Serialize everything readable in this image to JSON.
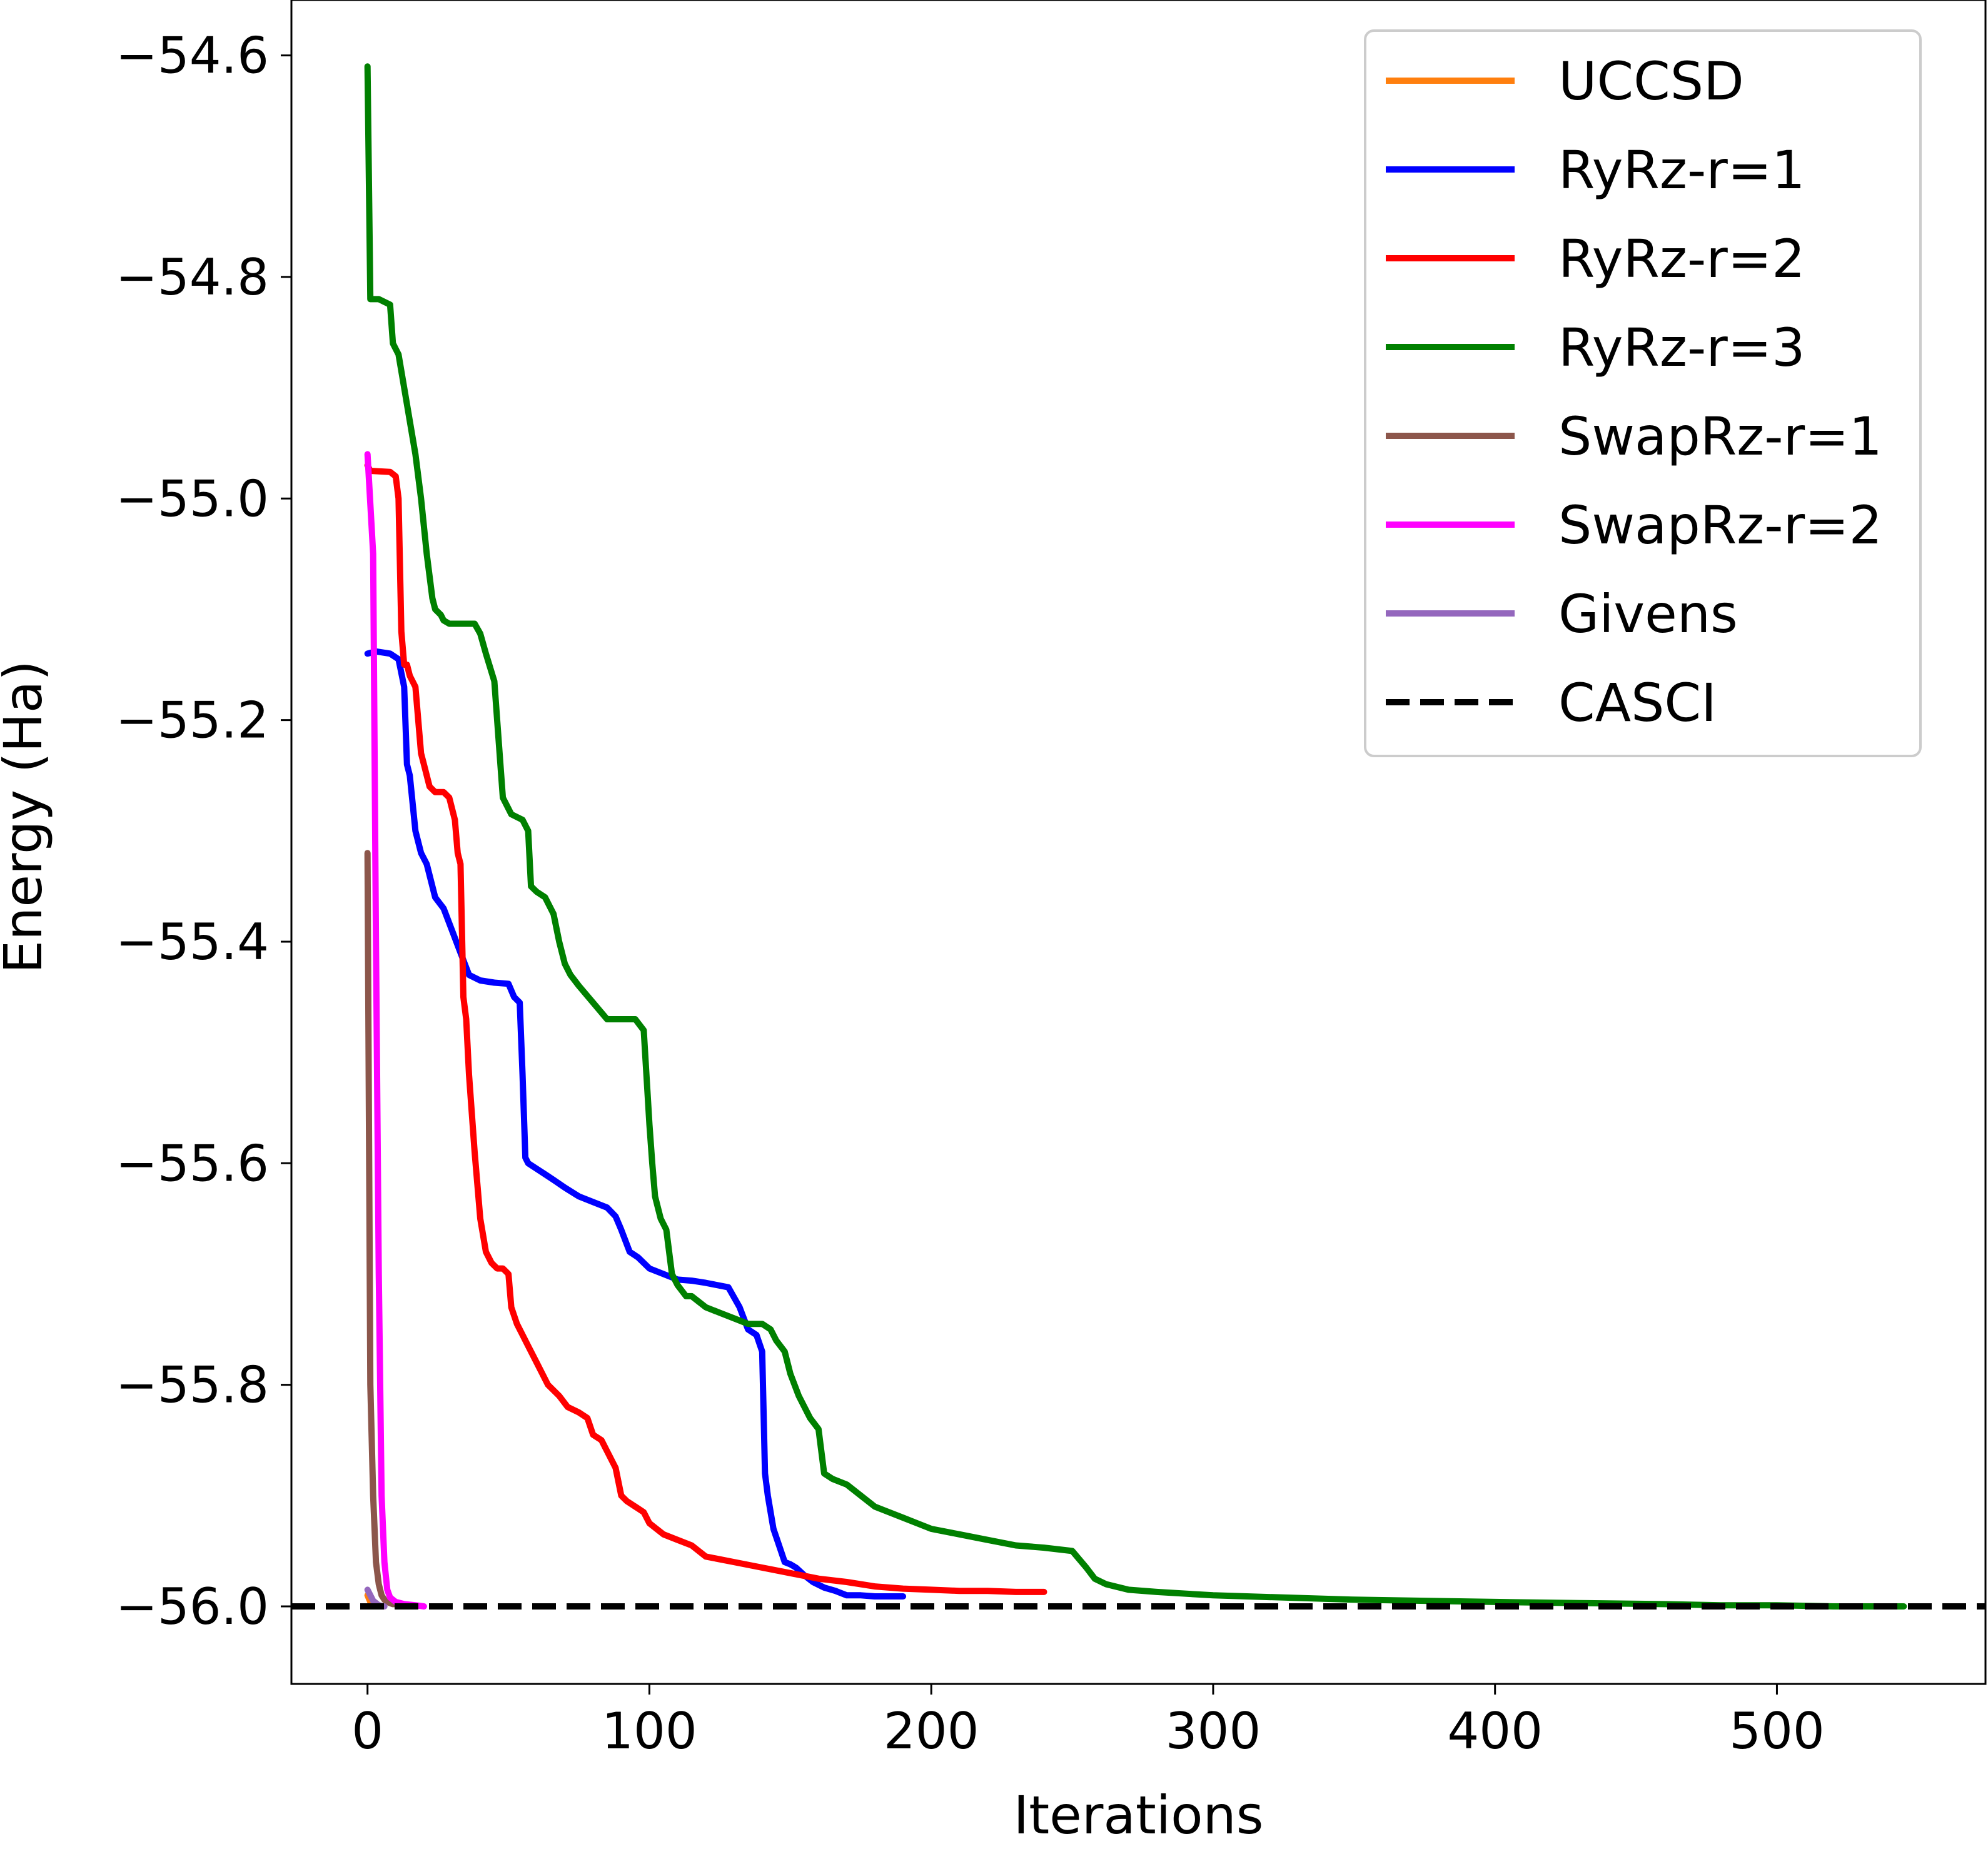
{
  "chart_data": {
    "type": "line",
    "title": "",
    "xlabel": "Iterations",
    "ylabel": "Energy (Ha)",
    "xlim": [
      -27,
      574
    ],
    "ylim": [
      -56.07,
      -54.55
    ],
    "xticks": [
      0,
      100,
      200,
      300,
      400,
      500
    ],
    "xtick_labels": [
      "0",
      "100",
      "200",
      "300",
      "400",
      "500"
    ],
    "yticks": [
      -54.6,
      -54.8,
      -55.0,
      -55.2,
      -55.4,
      -55.6,
      -55.8,
      -56.0
    ],
    "ytick_labels": [
      "−54.6",
      "−54.8",
      "−55.0",
      "−55.2",
      "−55.4",
      "−55.6",
      "−55.8",
      "−56.0"
    ],
    "legend_position": "top-right",
    "series": [
      {
        "name": "UCCSD",
        "color": "#ff7f0e",
        "dashed": false,
        "x": [
          0,
          1,
          2
        ],
        "y": [
          -55.99,
          -55.996,
          -55.998
        ]
      },
      {
        "name": "RyRz-r=1",
        "color": "#0000ff",
        "dashed": false,
        "x": [
          0,
          3,
          8,
          11,
          13,
          14,
          15,
          17,
          19,
          21,
          24,
          27,
          30,
          33,
          36,
          40,
          45,
          50,
          52,
          54,
          55,
          56,
          57,
          60,
          63,
          66,
          70,
          75,
          80,
          85,
          88,
          90,
          93,
          96,
          100,
          105,
          110,
          115,
          120,
          128,
          132,
          135,
          138,
          140,
          141,
          142,
          144,
          146,
          148,
          150,
          152,
          155,
          158,
          162,
          166,
          170,
          175,
          180,
          185,
          190
        ],
        "y": [
          -55.14,
          -55.138,
          -55.14,
          -55.145,
          -55.17,
          -55.24,
          -55.25,
          -55.3,
          -55.32,
          -55.33,
          -55.36,
          -55.37,
          -55.39,
          -55.41,
          -55.43,
          -55.435,
          -55.437,
          -55.438,
          -55.45,
          -55.455,
          -55.52,
          -55.595,
          -55.6,
          -55.605,
          -55.61,
          -55.615,
          -55.622,
          -55.63,
          -55.635,
          -55.64,
          -55.648,
          -55.66,
          -55.68,
          -55.685,
          -55.695,
          -55.7,
          -55.705,
          -55.706,
          -55.708,
          -55.712,
          -55.73,
          -55.75,
          -55.755,
          -55.77,
          -55.88,
          -55.9,
          -55.93,
          -55.945,
          -55.96,
          -55.962,
          -55.965,
          -55.972,
          -55.978,
          -55.983,
          -55.986,
          -55.99,
          -55.99,
          -55.991,
          -55.991,
          -55.991
        ]
      },
      {
        "name": "RyRz-r=2",
        "color": "#ff0000",
        "dashed": false,
        "x": [
          0,
          1,
          8,
          10,
          11,
          12,
          13,
          14,
          15,
          17,
          18,
          19,
          20,
          22,
          24,
          25,
          27,
          29,
          31,
          32,
          33,
          34,
          35,
          36,
          38,
          39,
          40,
          42,
          44,
          46,
          48,
          50,
          51,
          53,
          55,
          57,
          60,
          62,
          64,
          68,
          71,
          75,
          78,
          80,
          83,
          85,
          88,
          90,
          92,
          95,
          98,
          100,
          105,
          110,
          115,
          120,
          130,
          140,
          150,
          160,
          170,
          180,
          190,
          200,
          210,
          220,
          230,
          240
        ],
        "y": [
          -54.97,
          -54.975,
          -54.976,
          -54.98,
          -55.0,
          -55.12,
          -55.15,
          -55.15,
          -55.16,
          -55.17,
          -55.2,
          -55.23,
          -55.24,
          -55.26,
          -55.265,
          -55.265,
          -55.265,
          -55.27,
          -55.29,
          -55.32,
          -55.33,
          -55.45,
          -55.47,
          -55.52,
          -55.59,
          -55.62,
          -55.65,
          -55.68,
          -55.69,
          -55.695,
          -55.695,
          -55.7,
          -55.73,
          -55.745,
          -55.755,
          -55.765,
          -55.78,
          -55.79,
          -55.8,
          -55.81,
          -55.82,
          -55.825,
          -55.83,
          -55.845,
          -55.85,
          -55.86,
          -55.875,
          -55.9,
          -55.905,
          -55.91,
          -55.915,
          -55.925,
          -55.935,
          -55.94,
          -55.945,
          -55.955,
          -55.96,
          -55.965,
          -55.97,
          -55.975,
          -55.978,
          -55.982,
          -55.984,
          -55.985,
          -55.986,
          -55.986,
          -55.987,
          -55.987
        ]
      },
      {
        "name": "RyRz-r=3",
        "color": "#008000",
        "dashed": false,
        "x": [
          0,
          1,
          4,
          8,
          9,
          11,
          13,
          15,
          17,
          19,
          21,
          23,
          24,
          26,
          27,
          29,
          33,
          38,
          40,
          42,
          45,
          46,
          48,
          51,
          55,
          57,
          58,
          60,
          63,
          66,
          68,
          70,
          72,
          75,
          80,
          85,
          90,
          95,
          98,
          100,
          101,
          102,
          104,
          106,
          108,
          110,
          113,
          115,
          120,
          125,
          130,
          135,
          140,
          143,
          145,
          148,
          150,
          153,
          157,
          160,
          162,
          165,
          170,
          175,
          180,
          185,
          190,
          195,
          200,
          210,
          220,
          230,
          240,
          250,
          255,
          258,
          262,
          270,
          280,
          300,
          350,
          400,
          430,
          460,
          480,
          500,
          520,
          545
        ],
        "y": [
          -54.61,
          -54.82,
          -54.82,
          -54.825,
          -54.86,
          -54.87,
          -54.9,
          -54.93,
          -54.96,
          -55.0,
          -55.05,
          -55.09,
          -55.1,
          -55.105,
          -55.11,
          -55.113,
          -55.113,
          -55.113,
          -55.122,
          -55.14,
          -55.165,
          -55.2,
          -55.27,
          -55.285,
          -55.29,
          -55.3,
          -55.35,
          -55.355,
          -55.36,
          -55.375,
          -55.4,
          -55.42,
          -55.43,
          -55.44,
          -55.455,
          -55.47,
          -55.47,
          -55.47,
          -55.48,
          -55.565,
          -55.6,
          -55.63,
          -55.65,
          -55.66,
          -55.7,
          -55.71,
          -55.72,
          -55.72,
          -55.73,
          -55.735,
          -55.74,
          -55.745,
          -55.745,
          -55.75,
          -55.76,
          -55.77,
          -55.79,
          -55.81,
          -55.83,
          -55.84,
          -55.88,
          -55.885,
          -55.89,
          -55.9,
          -55.91,
          -55.915,
          -55.92,
          -55.925,
          -55.93,
          -55.935,
          -55.94,
          -55.945,
          -55.947,
          -55.95,
          -55.965,
          -55.975,
          -55.98,
          -55.985,
          -55.987,
          -55.99,
          -55.994,
          -55.996,
          -55.997,
          -55.998,
          -55.999,
          -55.999,
          -56.0,
          -56.0
        ]
      },
      {
        "name": "SwapRz-r=1",
        "color": "#8c564b",
        "dashed": false,
        "x": [
          0,
          1,
          2,
          3,
          4,
          5,
          6,
          7,
          8,
          9,
          10
        ],
        "y": [
          -55.32,
          -55.8,
          -55.9,
          -55.96,
          -55.98,
          -55.99,
          -55.994,
          -55.996,
          -55.997,
          -55.998,
          -55.998
        ]
      },
      {
        "name": "SwapRz-r=2",
        "color": "#ff00ff",
        "dashed": false,
        "x": [
          0,
          2,
          3,
          4,
          5,
          6,
          7,
          8,
          10,
          13,
          17,
          20
        ],
        "y": [
          -54.96,
          -55.05,
          -55.4,
          -55.7,
          -55.9,
          -55.96,
          -55.985,
          -55.992,
          -55.996,
          -55.998,
          -55.999,
          -56.0
        ]
      },
      {
        "name": "Givens",
        "color": "#9467bd",
        "dashed": false,
        "x": [
          0,
          1,
          2,
          4,
          6
        ],
        "y": [
          -55.985,
          -55.99,
          -55.995,
          -55.999,
          -56.0
        ]
      },
      {
        "name": "CASCI",
        "color": "#000000",
        "dashed": true,
        "x": [
          -27,
          574
        ],
        "y": [
          -56.0,
          -56.0
        ]
      }
    ]
  }
}
